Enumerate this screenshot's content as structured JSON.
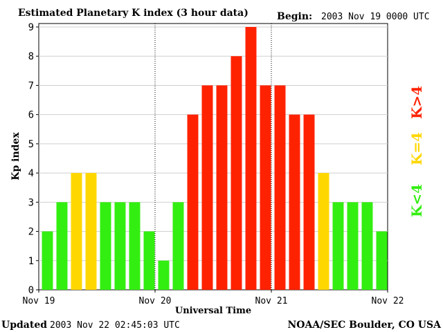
{
  "chart_data": {
    "type": "bar",
    "title": "Estimated Planetary K index (3 hour data)",
    "begin_label": "Begin:",
    "begin_value": "2003 Nov 19 0000 UTC",
    "xlabel": "Universal Time",
    "ylabel": "Kp index",
    "ylim": [
      0,
      9
    ],
    "yticks": [
      "0",
      "1",
      "2",
      "3",
      "4",
      "5",
      "6",
      "7",
      "8",
      "9"
    ],
    "xticks": [
      "Nov 19",
      "Nov 20",
      "Nov 21",
      "Nov 22"
    ],
    "values": [
      2,
      3,
      4,
      4,
      3,
      3,
      3,
      2,
      1,
      3,
      6,
      7,
      7,
      8,
      9,
      7,
      7,
      6,
      6,
      4,
      3,
      3,
      3,
      2
    ],
    "legend": [
      {
        "label": "K<4",
        "color": "#33ee11"
      },
      {
        "label": "K=4",
        "color": "#ffd700"
      },
      {
        "label": "K>4",
        "color": "#ff2200"
      }
    ],
    "day_separators": "dotted",
    "grid": "horizontal"
  },
  "footer": {
    "updated_label": "Updated",
    "updated_value": "2003 Nov 22 02:45:03 UTC",
    "source": "NOAA/SEC Boulder, CO USA"
  }
}
